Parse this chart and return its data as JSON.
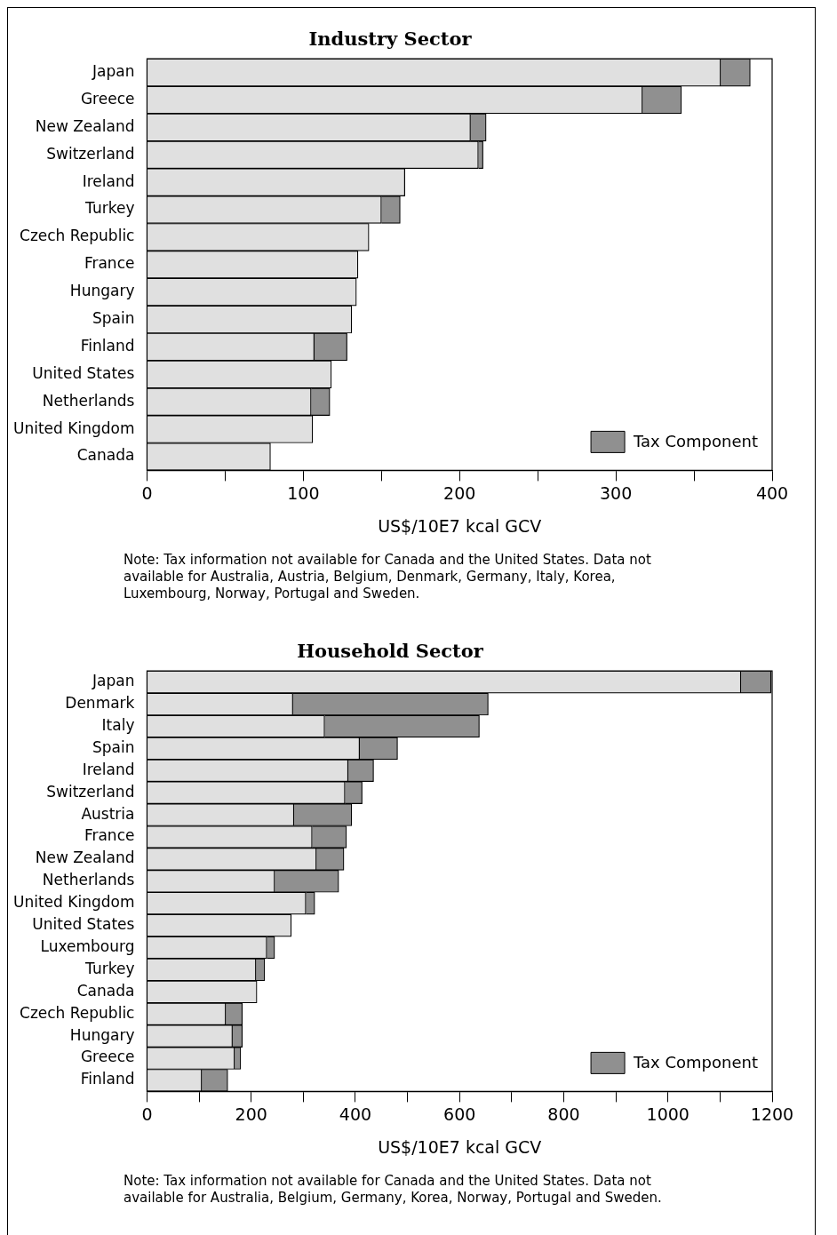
{
  "chart_data": [
    {
      "type": "bar",
      "title": "Industry Sector",
      "orientation": "horizontal",
      "stacked": true,
      "xlabel": "US$/10E7 kcal GCV",
      "categories": [
        "Japan",
        "Greece",
        "New Zealand",
        "Switzerland",
        "Ireland",
        "Turkey",
        "Czech Republic",
        "France",
        "Hungary",
        "Spain",
        "Finland",
        "United States",
        "Netherlands",
        "United Kingdom",
        "Canada"
      ],
      "series": [
        {
          "color": "#e0e0e0",
          "values": [
            367,
            317,
            207,
            212,
            165,
            150,
            142,
            135,
            134,
            131,
            107,
            118,
            105,
            106,
            79
          ]
        },
        {
          "name": "Tax Component",
          "color": "#909090",
          "values": [
            19,
            25,
            10,
            3,
            null,
            12,
            null,
            null,
            null,
            null,
            21,
            null,
            12,
            null,
            null
          ]
        }
      ],
      "xlim": [
        0,
        400
      ],
      "xticks": [
        0,
        {
          "value": 50,
          "label": null
        },
        100,
        {
          "value": 150,
          "label": null
        },
        200,
        {
          "value": 250,
          "label": null
        },
        300,
        {
          "value": 350,
          "label": null
        },
        400
      ],
      "legend": "bottom right",
      "grid": false,
      "annotations": [
        "Note: Tax information not available for Canada and the United States. Data not available for Australia, Austria, Belgium, Denmark, Germany, Italy, Korea, Luxembourg, Norway, Portugal and Sweden."
      ]
    },
    {
      "type": "bar",
      "title": "Household Sector",
      "orientation": "horizontal",
      "stacked": true,
      "xlabel": "US$/10E7 kcal GCV",
      "categories": [
        "Japan",
        "Denmark",
        "Italy",
        "Spain",
        "Ireland",
        "Switzerland",
        "Austria",
        "France",
        "New Zealand",
        "Netherlands",
        "United Kingdom",
        "United States",
        "Luxembourg",
        "Turkey",
        "Canada",
        "Czech Republic",
        "Hungary",
        "Greece",
        "Finland"
      ],
      "series": [
        {
          "color": "#e0e0e0",
          "values": [
            1140,
            280,
            341,
            408,
            386,
            380,
            282,
            317,
            325,
            245,
            305,
            277,
            230,
            209,
            211,
            151,
            164,
            168,
            105
          ]
        },
        {
          "name": "Tax Component",
          "color": "#909090",
          "values": [
            58,
            375,
            297,
            73,
            49,
            33,
            111,
            66,
            53,
            123,
            17,
            null,
            15,
            17,
            null,
            32,
            19,
            12,
            50
          ]
        }
      ],
      "xlim": [
        0,
        1200
      ],
      "xticks": [
        0,
        {
          "value": 100,
          "label": null
        },
        200,
        {
          "value": 300,
          "label": null
        },
        400,
        {
          "value": 500,
          "label": null
        },
        600,
        {
          "value": 700,
          "label": null
        },
        800,
        {
          "value": 900,
          "label": null
        },
        1000,
        {
          "value": 1100,
          "label": null
        },
        1200
      ],
      "legend": "bottom right",
      "grid": false,
      "annotations": [
        "Note: Tax information not available for Canada and the United States. Data not available for Australia, Belgium, Germany, Korea, Norway, Portugal and Sweden."
      ]
    }
  ]
}
